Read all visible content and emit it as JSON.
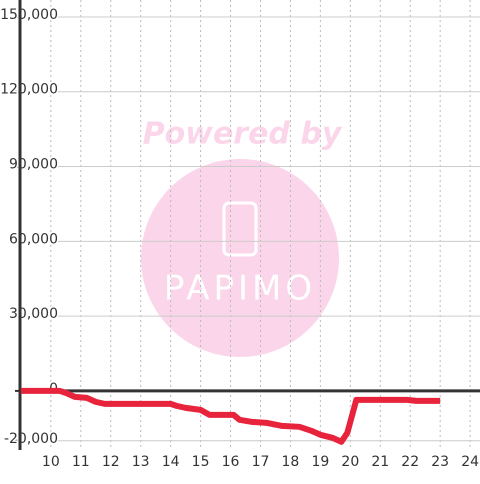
{
  "chart_data": {
    "type": "line",
    "watermark": [
      "Powered by",
      "PAPIMO"
    ],
    "x": [
      9.0,
      10.3,
      10.5,
      10.8,
      11.2,
      11.5,
      11.8,
      12,
      13,
      14,
      14.2,
      14.5,
      15,
      15.3,
      16.1,
      16.3,
      16.7,
      17.2,
      17.7,
      18.3,
      18.7,
      19.0,
      19.4,
      19.7,
      19.9,
      20.2,
      20.5,
      21.9,
      22.2,
      23.0
    ],
    "series": [
      {
        "color": "#e8243c",
        "values": [
          0,
          0,
          -800,
          -2400,
          -2800,
          -4400,
          -5200,
          -5200,
          -5200,
          -5200,
          -6000,
          -6800,
          -7600,
          -9600,
          -9600,
          -11600,
          -12400,
          -12800,
          -14000,
          -14400,
          -16000,
          -17600,
          -18800,
          -20400,
          -16800,
          -3600,
          -3600,
          -3600,
          -4000,
          -4000
        ]
      }
    ],
    "xlim": [
      8.97,
      24.33
    ],
    "xticks": [
      10,
      11,
      12,
      13,
      14,
      15,
      16,
      17,
      18,
      19,
      20,
      21,
      22,
      23,
      24
    ],
    "ylim": [
      -23700,
      156800
    ],
    "yticks": [
      {
        "value": 150000,
        "label": "150,000"
      },
      {
        "value": 120000,
        "label": "120,000"
      },
      {
        "value": 90000,
        "label": "90,000"
      },
      {
        "value": 60000,
        "label": "60,000"
      },
      {
        "value": 30000,
        "label": "30,000"
      },
      0,
      {
        "value": -20000,
        "label": "-20,000"
      }
    ],
    "grid": true
  }
}
